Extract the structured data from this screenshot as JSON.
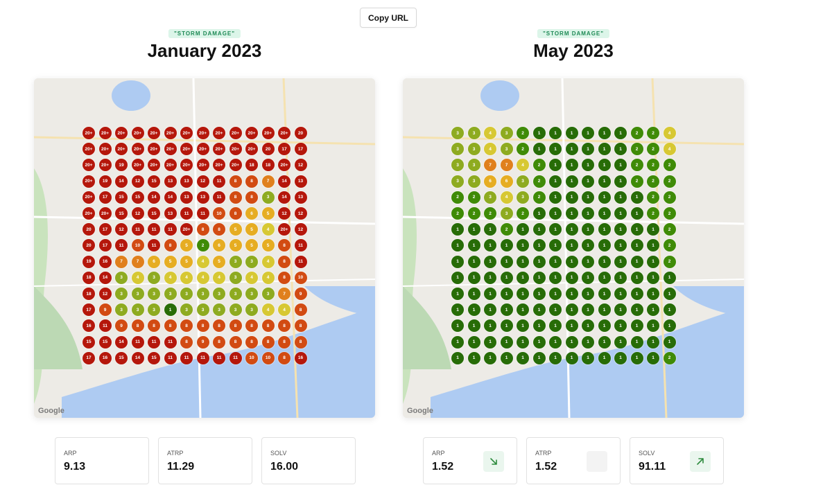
{
  "toolbar": {
    "copy_label": "Copy URL"
  },
  "colors": {
    "red": "#b5170b",
    "orange_red": "#d24b12",
    "orange": "#e0801d",
    "amber": "#e6ad22",
    "yellow": "#d7c833",
    "olive": "#8eab20",
    "green": "#3f8b07",
    "dark_green": "#276c07"
  },
  "panels": [
    {
      "badge": "\"STORM DAMAGE\"",
      "title": "January 2023",
      "grid": [
        [
          "20+",
          "20+",
          "20+",
          "20+",
          "20+",
          "20+",
          "20+",
          "20+",
          "20+",
          "20+",
          "20+",
          "20+",
          "20+",
          "20"
        ],
        [
          "20+",
          "20+",
          "20+",
          "20+",
          "20+",
          "20+",
          "20+",
          "20+",
          "20+",
          "20+",
          "20+",
          "20",
          "17",
          "17"
        ],
        [
          "20+",
          "20+",
          "19",
          "20+",
          "20+",
          "20+",
          "20+",
          "20+",
          "20+",
          "20+",
          "18",
          "18",
          "20+",
          "12"
        ],
        [
          "20+",
          "19",
          "14",
          "12",
          "15",
          "13",
          "13",
          "12",
          "11",
          "8",
          "8",
          "7",
          "14",
          "13"
        ],
        [
          "20+",
          "17",
          "15",
          "15",
          "14",
          "14",
          "13",
          "13",
          "11",
          "8",
          "8",
          "3",
          "14",
          "13"
        ],
        [
          "20+",
          "20+",
          "15",
          "12",
          "15",
          "13",
          "11",
          "11",
          "10",
          "8",
          "6",
          "5",
          "12",
          "12"
        ],
        [
          "20",
          "17",
          "12",
          "11",
          "11",
          "11",
          "20+",
          "8",
          "8",
          "5",
          "5",
          "4",
          "20+",
          "12"
        ],
        [
          "20",
          "17",
          "11",
          "10",
          "11",
          "8",
          "5",
          "2",
          "6",
          "5",
          "5",
          "5",
          "8",
          "11"
        ],
        [
          "19",
          "16",
          "7",
          "7",
          "6",
          "5",
          "5",
          "4",
          "5",
          "3",
          "3",
          "4",
          "8",
          "11"
        ],
        [
          "18",
          "14",
          "3",
          "4",
          "3",
          "4",
          "4",
          "4",
          "4",
          "3",
          "4",
          "4",
          "8",
          "10"
        ],
        [
          "18",
          "12",
          "3",
          "3",
          "3",
          "3",
          "3",
          "3",
          "3",
          "3",
          "3",
          "3",
          "7",
          "9"
        ],
        [
          "17",
          "9",
          "3",
          "3",
          "3",
          "1",
          "3",
          "3",
          "3",
          "3",
          "3",
          "4",
          "4",
          "8"
        ],
        [
          "16",
          "11",
          "9",
          "8",
          "8",
          "8",
          "8",
          "8",
          "8",
          "8",
          "8",
          "8",
          "8",
          "8"
        ],
        [
          "15",
          "15",
          "14",
          "11",
          "11",
          "11",
          "8",
          "9",
          "8",
          "8",
          "8",
          "8",
          "8",
          "8"
        ],
        [
          "17",
          "16",
          "15",
          "14",
          "15",
          "11",
          "11",
          "11",
          "11",
          "11",
          "10",
          "10",
          "8",
          "16"
        ]
      ],
      "stats": [
        {
          "label": "ARP",
          "value": "9.13",
          "trend": ""
        },
        {
          "label": "ATRP",
          "value": "11.29",
          "trend": ""
        },
        {
          "label": "SOLV",
          "value": "16.00",
          "trend": ""
        }
      ]
    },
    {
      "badge": "\"STORM DAMAGE\"",
      "title": "May 2023",
      "grid": [
        [
          "3",
          "3",
          "4",
          "3",
          "2",
          "1",
          "1",
          "1",
          "1",
          "1",
          "1",
          "2",
          "2",
          "4"
        ],
        [
          "3",
          "3",
          "4",
          "3",
          "2",
          "1",
          "1",
          "1",
          "1",
          "1",
          "1",
          "2",
          "2",
          "4"
        ],
        [
          "3",
          "3",
          "7",
          "7",
          "4",
          "2",
          "1",
          "1",
          "1",
          "1",
          "1",
          "2",
          "2",
          "2"
        ],
        [
          "3",
          "3",
          "6",
          "6",
          "3",
          "2",
          "1",
          "1",
          "1",
          "1",
          "1",
          "2",
          "2",
          "2"
        ],
        [
          "2",
          "2",
          "3",
          "4",
          "3",
          "2",
          "1",
          "1",
          "1",
          "1",
          "1",
          "1",
          "2",
          "2"
        ],
        [
          "2",
          "2",
          "2",
          "3",
          "2",
          "1",
          "1",
          "1",
          "1",
          "1",
          "1",
          "1",
          "2",
          "2"
        ],
        [
          "1",
          "1",
          "1",
          "2",
          "1",
          "1",
          "1",
          "1",
          "1",
          "1",
          "1",
          "1",
          "1",
          "2"
        ],
        [
          "1",
          "1",
          "1",
          "1",
          "1",
          "1",
          "1",
          "1",
          "1",
          "1",
          "1",
          "1",
          "1",
          "2"
        ],
        [
          "1",
          "1",
          "1",
          "1",
          "1",
          "1",
          "1",
          "1",
          "1",
          "1",
          "1",
          "1",
          "1",
          "2"
        ],
        [
          "1",
          "1",
          "1",
          "1",
          "1",
          "1",
          "1",
          "1",
          "1",
          "1",
          "1",
          "1",
          "1",
          "1"
        ],
        [
          "1",
          "1",
          "1",
          "1",
          "1",
          "1",
          "1",
          "1",
          "1",
          "1",
          "1",
          "1",
          "1",
          "1"
        ],
        [
          "1",
          "1",
          "1",
          "1",
          "1",
          "1",
          "1",
          "1",
          "1",
          "1",
          "1",
          "1",
          "1",
          "1"
        ],
        [
          "1",
          "1",
          "1",
          "1",
          "1",
          "1",
          "1",
          "1",
          "1",
          "1",
          "1",
          "1",
          "1",
          "1"
        ],
        [
          "1",
          "1",
          "1",
          "1",
          "1",
          "1",
          "1",
          "1",
          "1",
          "1",
          "1",
          "1",
          "1",
          "1"
        ],
        [
          "1",
          "1",
          "1",
          "1",
          "1",
          "1",
          "1",
          "1",
          "1",
          "1",
          "1",
          "1",
          "1",
          "2"
        ]
      ],
      "stats": [
        {
          "label": "ARP",
          "value": "1.52",
          "trend": "down-right-arrow-icon"
        },
        {
          "label": "ATRP",
          "value": "1.52",
          "trend": "blank"
        },
        {
          "label": "SOLV",
          "value": "91.11",
          "trend": "up-right-arrow-icon"
        }
      ]
    }
  ],
  "map": {
    "attribution": "Google"
  }
}
